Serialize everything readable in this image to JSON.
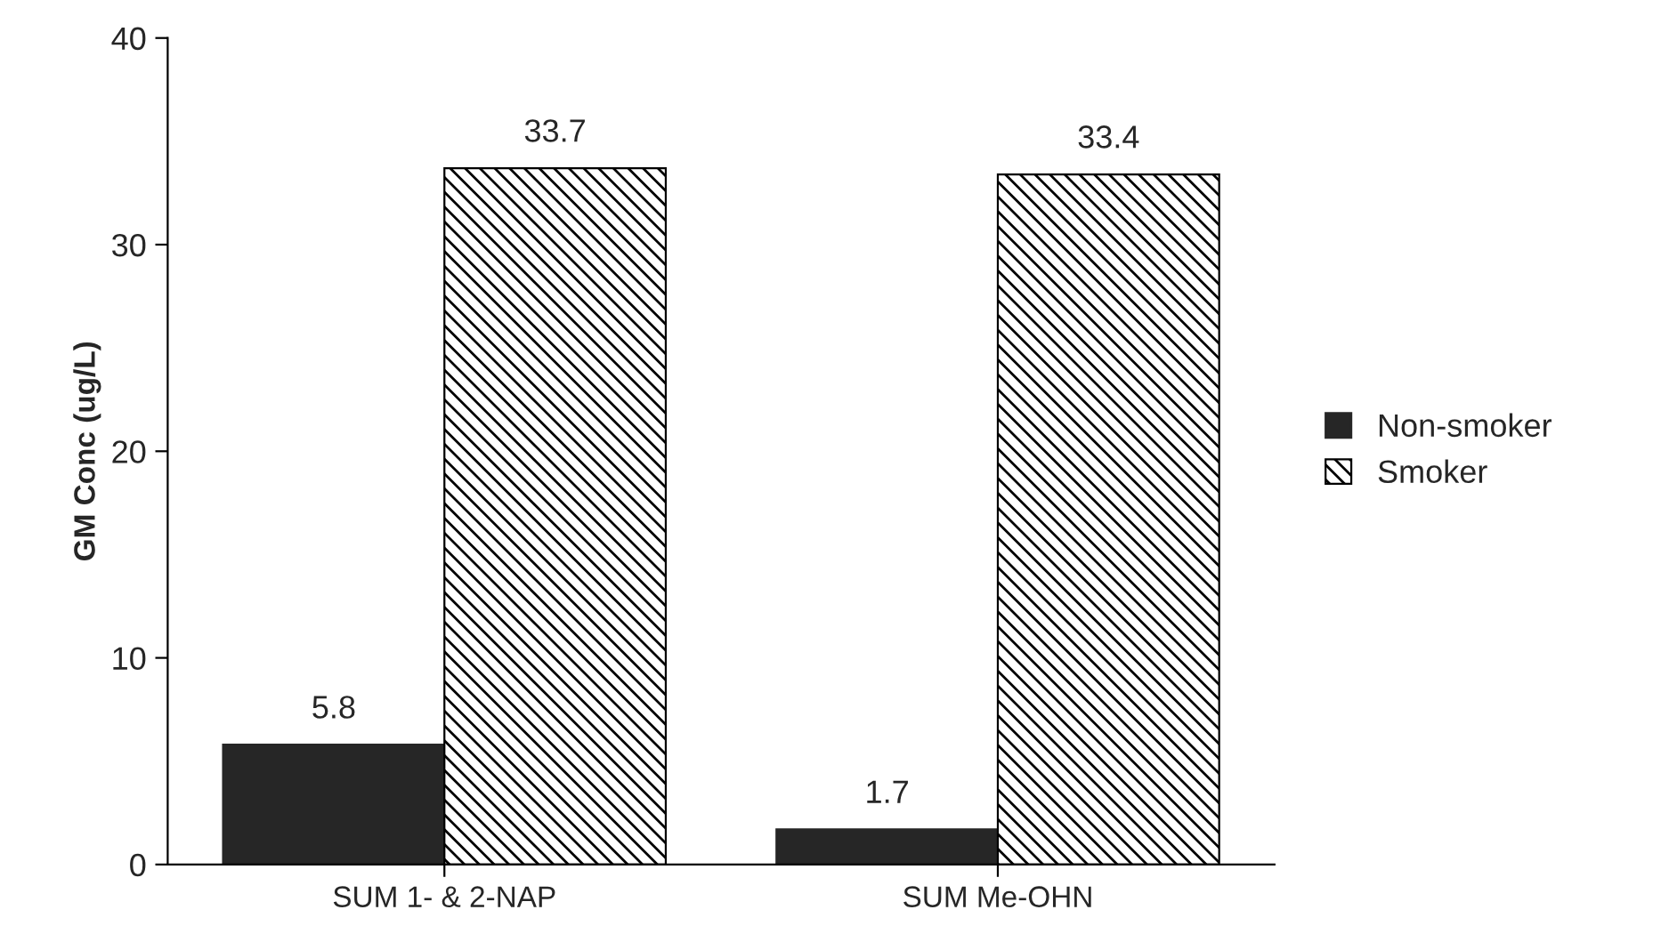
{
  "chart_data": {
    "type": "bar",
    "ylabel": "GM Conc (ug/L)",
    "categories": [
      "SUM 1- & 2-NAP",
      "SUM Me-OHN"
    ],
    "series": [
      {
        "name": "Non-smoker",
        "color": "#262626",
        "values": [
          5.8,
          1.7
        ]
      },
      {
        "name": "Smoker",
        "color": "#000000",
        "values": [
          33.7,
          33.4
        ]
      }
    ],
    "ylim": [
      0,
      40
    ],
    "yticks": [
      0,
      10,
      20,
      30,
      40
    ],
    "grid": false,
    "legend": "right",
    "data_labels": true
  }
}
